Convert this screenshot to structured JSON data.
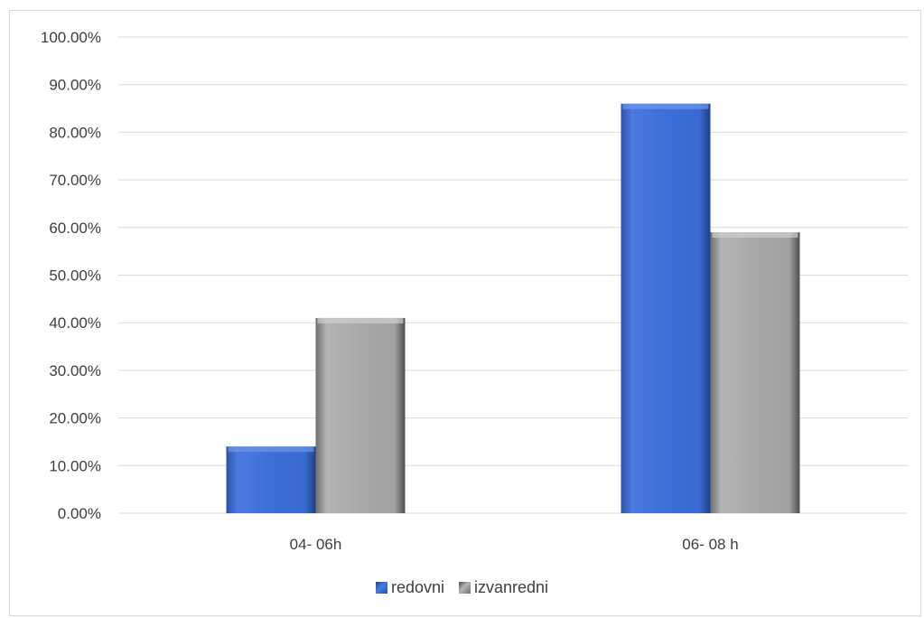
{
  "chart_data": {
    "type": "bar",
    "title": "",
    "xlabel": "",
    "ylabel": "",
    "categories": [
      "04- 06h",
      "06- 08 h"
    ],
    "series": [
      {
        "name": "redovni",
        "values": [
          14.0,
          86.0
        ],
        "color": "#3f6fd6"
      },
      {
        "name": "izvanredni",
        "values": [
          41.0,
          59.0
        ],
        "color": "#a6a6a6"
      }
    ],
    "ylim": [
      0,
      100
    ],
    "yticks": [
      "0.00%",
      "10.00%",
      "20.00%",
      "30.00%",
      "40.00%",
      "50.00%",
      "60.00%",
      "70.00%",
      "80.00%",
      "90.00%",
      "100.00%"
    ],
    "grid": true,
    "legend_position": "bottom"
  }
}
